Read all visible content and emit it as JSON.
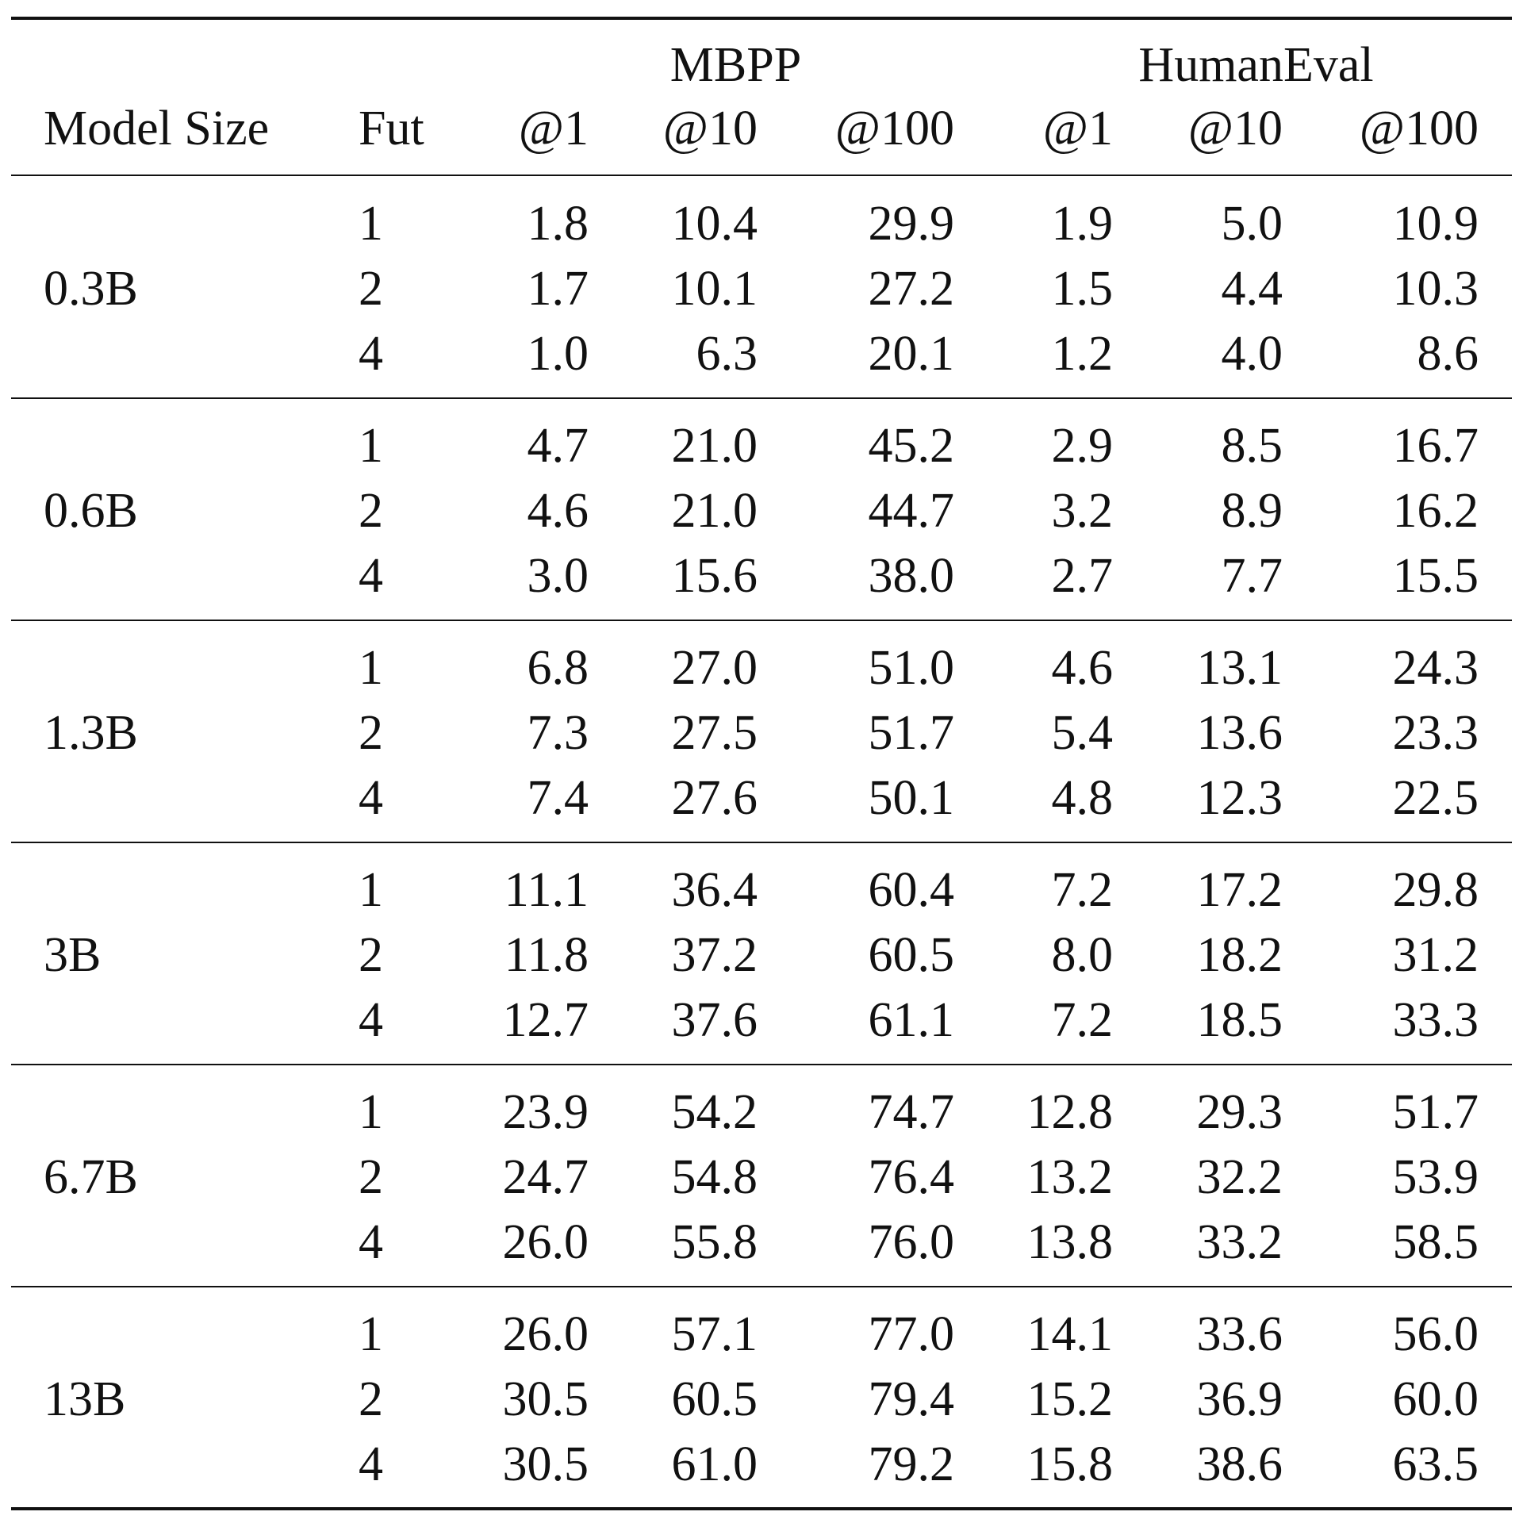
{
  "table": {
    "group_headers": [
      "MBPP",
      "HumanEval"
    ],
    "columns": [
      "Model Size",
      "Fut",
      "@1",
      "@10",
      "@100",
      "@1",
      "@10",
      "@100"
    ],
    "groups": [
      {
        "model_size": "0.3B",
        "rows": [
          {
            "fut": "1",
            "values": [
              "1.8",
              "10.4",
              "29.9",
              "1.9",
              "5.0",
              "10.9"
            ]
          },
          {
            "fut": "2",
            "values": [
              "1.7",
              "10.1",
              "27.2",
              "1.5",
              "4.4",
              "10.3"
            ]
          },
          {
            "fut": "4",
            "values": [
              "1.0",
              "6.3",
              "20.1",
              "1.2",
              "4.0",
              "8.6"
            ]
          }
        ]
      },
      {
        "model_size": "0.6B",
        "rows": [
          {
            "fut": "1",
            "values": [
              "4.7",
              "21.0",
              "45.2",
              "2.9",
              "8.5",
              "16.7"
            ]
          },
          {
            "fut": "2",
            "values": [
              "4.6",
              "21.0",
              "44.7",
              "3.2",
              "8.9",
              "16.2"
            ]
          },
          {
            "fut": "4",
            "values": [
              "3.0",
              "15.6",
              "38.0",
              "2.7",
              "7.7",
              "15.5"
            ]
          }
        ]
      },
      {
        "model_size": "1.3B",
        "rows": [
          {
            "fut": "1",
            "values": [
              "6.8",
              "27.0",
              "51.0",
              "4.6",
              "13.1",
              "24.3"
            ]
          },
          {
            "fut": "2",
            "values": [
              "7.3",
              "27.5",
              "51.7",
              "5.4",
              "13.6",
              "23.3"
            ]
          },
          {
            "fut": "4",
            "values": [
              "7.4",
              "27.6",
              "50.1",
              "4.8",
              "12.3",
              "22.5"
            ]
          }
        ]
      },
      {
        "model_size": "3B",
        "rows": [
          {
            "fut": "1",
            "values": [
              "11.1",
              "36.4",
              "60.4",
              "7.2",
              "17.2",
              "29.8"
            ]
          },
          {
            "fut": "2",
            "values": [
              "11.8",
              "37.2",
              "60.5",
              "8.0",
              "18.2",
              "31.2"
            ]
          },
          {
            "fut": "4",
            "values": [
              "12.7",
              "37.6",
              "61.1",
              "7.2",
              "18.5",
              "33.3"
            ]
          }
        ]
      },
      {
        "model_size": "6.7B",
        "rows": [
          {
            "fut": "1",
            "values": [
              "23.9",
              "54.2",
              "74.7",
              "12.8",
              "29.3",
              "51.7"
            ]
          },
          {
            "fut": "2",
            "values": [
              "24.7",
              "54.8",
              "76.4",
              "13.2",
              "32.2",
              "53.9"
            ]
          },
          {
            "fut": "4",
            "values": [
              "26.0",
              "55.8",
              "76.0",
              "13.8",
              "33.2",
              "58.5"
            ]
          }
        ]
      },
      {
        "model_size": "13B",
        "rows": [
          {
            "fut": "1",
            "values": [
              "26.0",
              "57.1",
              "77.0",
              "14.1",
              "33.6",
              "56.0"
            ]
          },
          {
            "fut": "2",
            "values": [
              "30.5",
              "60.5",
              "79.4",
              "15.2",
              "36.9",
              "60.0"
            ]
          },
          {
            "fut": "4",
            "values": [
              "30.5",
              "61.0",
              "79.2",
              "15.8",
              "38.6",
              "63.5"
            ]
          }
        ]
      }
    ]
  }
}
